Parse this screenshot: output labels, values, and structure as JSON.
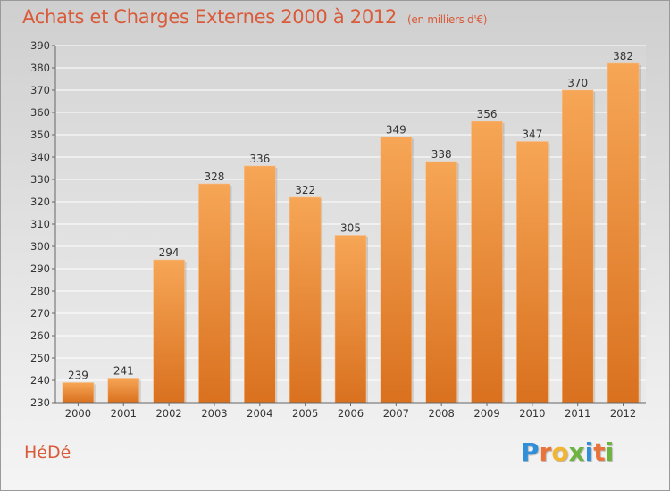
{
  "header": {
    "title": "Achats et Charges Externes 2000 à 2012",
    "unit": "(en milliers d'€)"
  },
  "footer": {
    "commune": "HéDé",
    "logo_text": "Proxiti",
    "logo_letter_colors": [
      "#2f8fd8",
      "#e8743b",
      "#f2b531",
      "#6cb33f",
      "#2f8fd8",
      "#e8743b",
      "#6cb33f"
    ]
  },
  "colors": {
    "title": "#d95b3a",
    "bar_top": "#f6a656",
    "bar_bottom": "#d9711f",
    "grid": "#ffffff",
    "axis_text": "#333333"
  },
  "chart_data": {
    "type": "bar",
    "title": "Achats et Charges Externes 2000 à 2012",
    "subtitle": "(en milliers d'€)",
    "categories": [
      "2000",
      "2001",
      "2002",
      "2003",
      "2004",
      "2005",
      "2006",
      "2007",
      "2008",
      "2009",
      "2010",
      "2011",
      "2012"
    ],
    "values": [
      239,
      241,
      294,
      328,
      336,
      322,
      305,
      349,
      338,
      356,
      347,
      370,
      382
    ],
    "ylim": [
      230,
      390
    ],
    "yticks": [
      230,
      240,
      250,
      260,
      270,
      280,
      290,
      300,
      310,
      320,
      330,
      340,
      350,
      360,
      370,
      380,
      390
    ],
    "grid": true,
    "data_labels": true
  }
}
